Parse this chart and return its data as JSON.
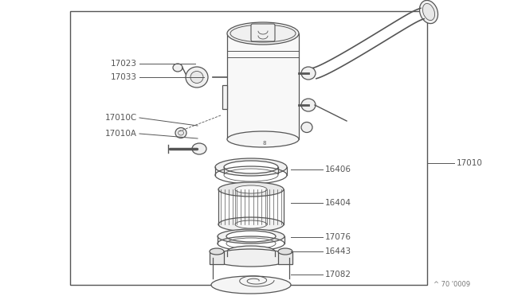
{
  "background_color": "#ffffff",
  "border_color": "#555555",
  "line_color": "#555555",
  "text_color": "#555555",
  "watermark": "^ 70 '0009",
  "part_labels_left": [
    "17023",
    "17033",
    "17010C",
    "17010A"
  ],
  "part_labels_right": [
    "16406",
    "16404",
    "17076",
    "16443",
    "17082"
  ],
  "part_label_outer": "17010"
}
